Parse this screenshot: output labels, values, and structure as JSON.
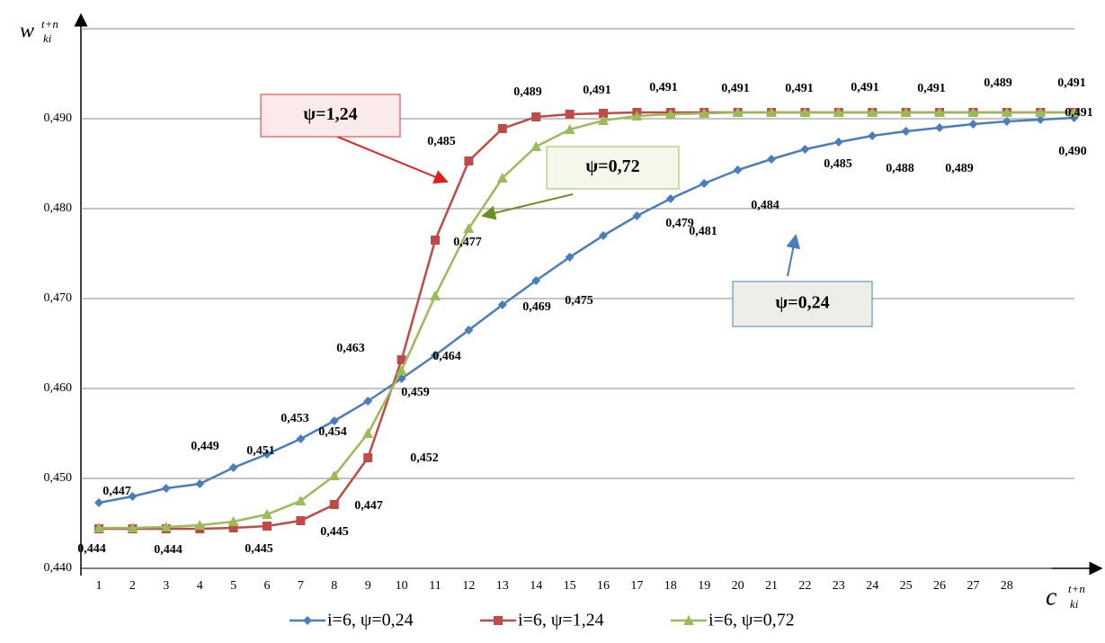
{
  "chart_data": {
    "type": "line",
    "y_label": "w",
    "y_label_sup": "t+n",
    "y_label_sub": "ki",
    "x_label": "c",
    "x_label_sup": "t+n",
    "x_label_sub": "ki",
    "categories": [
      "1",
      "2",
      "3",
      "4",
      "5",
      "6",
      "7",
      "8",
      "9",
      "10",
      "11",
      "12",
      "13",
      "14",
      "15",
      "16",
      "17",
      "18",
      "19",
      "20",
      "21",
      "22",
      "23",
      "24",
      "25",
      "26",
      "27",
      "28",
      null,
      null
    ],
    "ylim": [
      0.44,
      0.5
    ],
    "yticks": [
      {
        "value": 0.44,
        "label": "0,440"
      },
      {
        "value": 0.45,
        "label": "0,450"
      },
      {
        "value": 0.46,
        "label": "0,460"
      },
      {
        "value": 0.47,
        "label": "0,470"
      },
      {
        "value": 0.48,
        "label": "0,480"
      },
      {
        "value": 0.49,
        "label": "0,490"
      }
    ],
    "grid": true,
    "series": [
      {
        "name": "i=6, ψ=0,24",
        "color": "#4a7ebb",
        "marker": "diamond",
        "values": [
          0.4473,
          0.448,
          0.4489,
          0.4494,
          0.4512,
          0.4527,
          0.4544,
          0.4564,
          0.4586,
          0.4611,
          0.4637,
          0.4665,
          0.4693,
          0.472,
          0.4746,
          0.477,
          0.4792,
          0.4811,
          0.4828,
          0.4843,
          0.4855,
          0.4866,
          0.4874,
          0.4881,
          0.4886,
          0.489,
          0.4894,
          0.4897,
          0.4899,
          0.4901
        ]
      },
      {
        "name": "i=6, ψ=1,24",
        "color": "#be4b48",
        "marker": "square",
        "values": [
          0.4444,
          0.4444,
          0.4444,
          0.4444,
          0.4445,
          0.4447,
          0.4453,
          0.4471,
          0.4523,
          0.4632,
          0.4765,
          0.4853,
          0.4889,
          0.4902,
          0.4905,
          0.4906,
          0.4907,
          0.4907,
          0.4907,
          0.4907,
          0.4907,
          0.4907,
          0.4907,
          0.4907,
          0.4907,
          0.4907,
          0.4907,
          0.4907,
          0.4907,
          0.4907
        ]
      },
      {
        "name": "i=6, ψ=0,72",
        "color": "#9bbb59",
        "marker": "triangle",
        "values": [
          0.4445,
          0.4445,
          0.4446,
          0.4448,
          0.4452,
          0.446,
          0.4475,
          0.4503,
          0.455,
          0.462,
          0.4703,
          0.4778,
          0.4834,
          0.4869,
          0.4888,
          0.4898,
          0.4903,
          0.4905,
          0.4906,
          0.4907,
          0.4907,
          0.4907,
          0.4907,
          0.4907,
          0.4907,
          0.4907,
          0.4907,
          0.4907,
          0.4907,
          0.4907
        ]
      }
    ],
    "annotations": [
      "0,447",
      "0,449",
      "0,451",
      "0,453",
      "0,463",
      "0,454",
      "0,459",
      "0,464",
      "0,452",
      "0,447",
      "0,445",
      "0,445",
      "0,444",
      "0,444",
      "0,469",
      "0,475",
      "0,477",
      "0,485",
      "0,489",
      "0,491",
      "0,491",
      "0,491",
      "0,491",
      "0,491",
      "0,491",
      "0,489",
      "0,491",
      "0,491",
      "0,490",
      "0,479",
      "0,484",
      "0,481",
      "0,485",
      "0,488",
      "0,489"
    ],
    "callouts": [
      "ψ=1,24",
      "ψ=0,72",
      "ψ=0,24"
    ],
    "legend_position": "bottom"
  }
}
